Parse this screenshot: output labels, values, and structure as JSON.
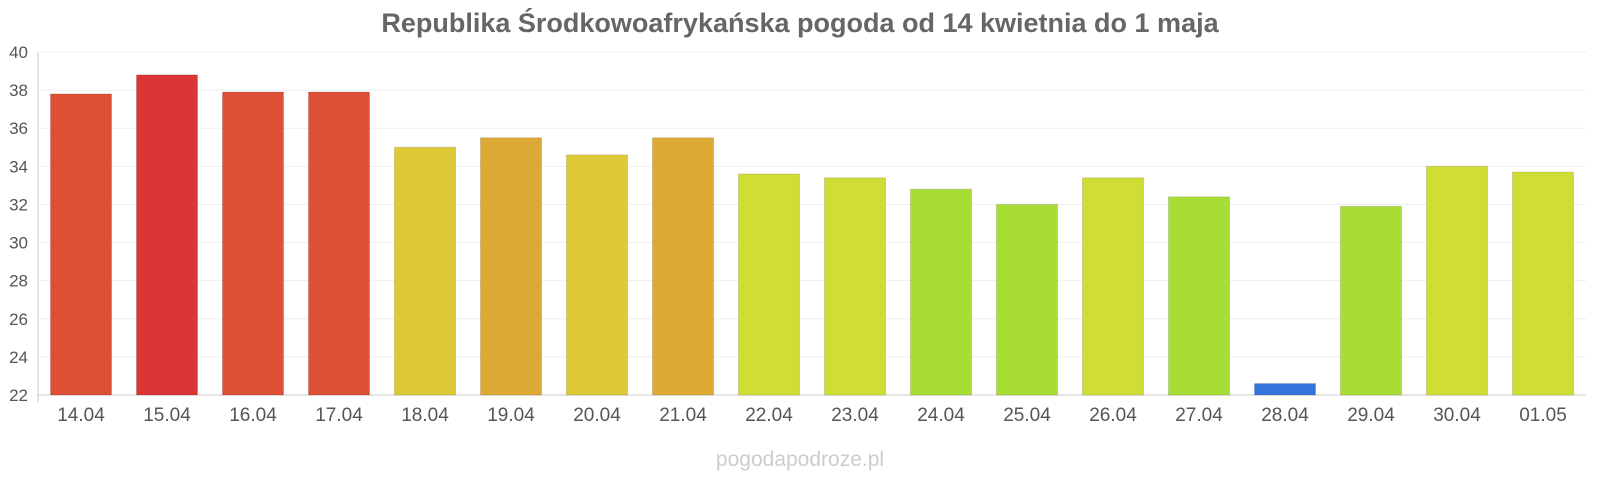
{
  "chart_data": {
    "type": "bar",
    "title": "Republika Środkowoafrykańska pogoda od 14 kwietnia do 1 maja",
    "xlabel": "",
    "ylabel": "",
    "categories": [
      "14.04",
      "15.04",
      "16.04",
      "17.04",
      "18.04",
      "19.04",
      "20.04",
      "21.04",
      "22.04",
      "23.04",
      "24.04",
      "25.04",
      "26.04",
      "27.04",
      "28.04",
      "29.04",
      "30.04",
      "01.05"
    ],
    "values": [
      37.8,
      38.8,
      37.9,
      37.9,
      35.0,
      35.5,
      34.6,
      35.5,
      33.6,
      33.4,
      32.8,
      32.0,
      33.4,
      32.4,
      22.6,
      31.9,
      34.0,
      33.7
    ],
    "bar_colors": [
      "#dd5035",
      "#dc3535",
      "#dd5035",
      "#dd5035",
      "#dcc935",
      "#dca935",
      "#dcc935",
      "#dca935",
      "#cfdd35",
      "#cfdd35",
      "#a8dd35",
      "#a8dd35",
      "#cfdd35",
      "#a8dd35",
      "#3574dc",
      "#a8dd35",
      "#cfdd35",
      "#cfdd35"
    ],
    "ylim": [
      22,
      40
    ],
    "yticks": [
      "22",
      "24",
      "26",
      "28",
      "30",
      "32",
      "34",
      "36",
      "38",
      "40"
    ],
    "grid": true,
    "legend": "none"
  },
  "watermark": "pogodapodroze.pl"
}
